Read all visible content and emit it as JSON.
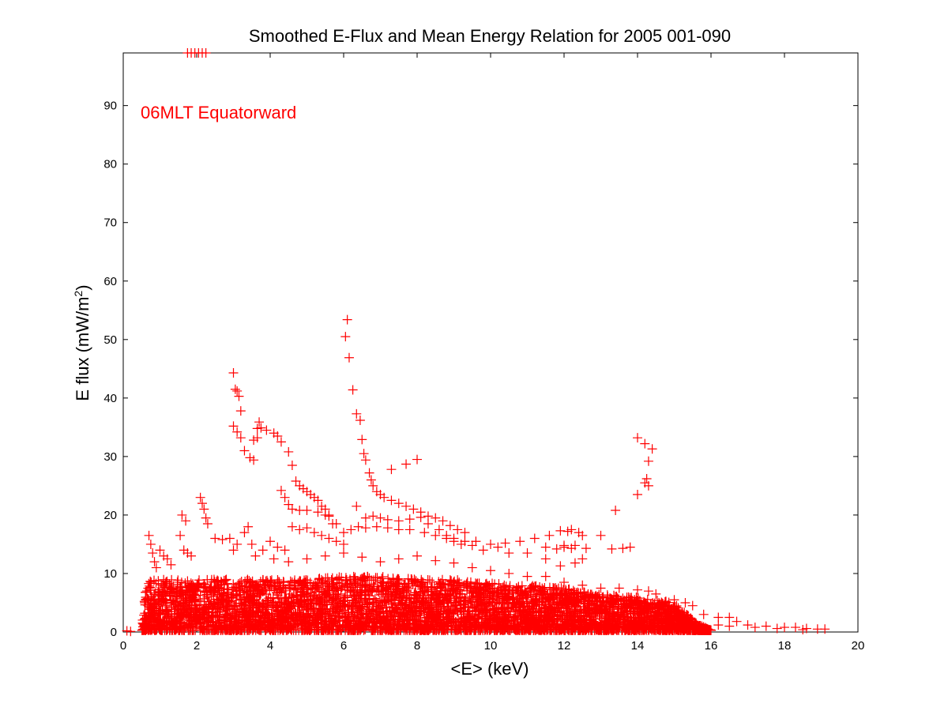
{
  "chart_data": {
    "type": "scatter",
    "title": "Smoothed E-Flux and Mean Energy Relation for 2005 001-090",
    "xlabel": "<E> (keV)",
    "ylabel_main": "E flux (mW/m",
    "ylabel_sup": "2",
    "ylabel_close": ")",
    "annotation": "06MLT Equatorward",
    "xlim": [
      0,
      20
    ],
    "ylim": [
      0,
      99
    ],
    "x_ticks": [
      0,
      2,
      4,
      6,
      8,
      10,
      12,
      14,
      16,
      18,
      20
    ],
    "y_ticks": [
      0,
      10,
      20,
      30,
      40,
      50,
      60,
      70,
      80,
      90
    ],
    "grid": false,
    "marker": "+",
    "marker_color": "#ff0000",
    "series": [
      {
        "points": [
          [
            1.75,
            99
          ],
          [
            1.85,
            99
          ],
          [
            1.95,
            99
          ],
          [
            2.05,
            99
          ],
          [
            2.15,
            99
          ],
          [
            2.25,
            99
          ],
          [
            0.7,
            16.5
          ],
          [
            0.75,
            15
          ],
          [
            0.8,
            13.5
          ],
          [
            0.85,
            12
          ],
          [
            0.9,
            11
          ],
          [
            1.0,
            14
          ],
          [
            1.1,
            13
          ],
          [
            1.2,
            12.5
          ],
          [
            1.3,
            11.5
          ],
          [
            1.6,
            20
          ],
          [
            1.7,
            19
          ],
          [
            1.55,
            16.5
          ],
          [
            1.65,
            14
          ],
          [
            1.75,
            13.5
          ],
          [
            1.85,
            13
          ],
          [
            2.1,
            23
          ],
          [
            2.15,
            22
          ],
          [
            2.2,
            21
          ],
          [
            2.25,
            19.5
          ],
          [
            2.3,
            18.5
          ],
          [
            2.5,
            16
          ],
          [
            2.7,
            15.8
          ],
          [
            2.9,
            16
          ],
          [
            3.0,
            14
          ],
          [
            3.1,
            15
          ],
          [
            3.3,
            17
          ],
          [
            3.4,
            18
          ],
          [
            3.5,
            15
          ],
          [
            3.6,
            13
          ],
          [
            3.0,
            44.3
          ],
          [
            3.05,
            41.5
          ],
          [
            3.1,
            41.2
          ],
          [
            3.15,
            40.3
          ],
          [
            3.2,
            37.8
          ],
          [
            3.0,
            35.2
          ],
          [
            3.1,
            34.2
          ],
          [
            3.2,
            33.2
          ],
          [
            3.3,
            31
          ],
          [
            3.45,
            29.8
          ],
          [
            3.55,
            29.4
          ],
          [
            3.7,
            35.9
          ],
          [
            3.65,
            34.8
          ],
          [
            3.75,
            34.9
          ],
          [
            3.9,
            34.5
          ],
          [
            4.1,
            34.0
          ],
          [
            4.2,
            33.5
          ],
          [
            4.3,
            32.5
          ],
          [
            4.5,
            30.8
          ],
          [
            4.6,
            28.5
          ],
          [
            4.7,
            25.8
          ],
          [
            4.8,
            25
          ],
          [
            4.9,
            24.5
          ],
          [
            5.0,
            24
          ],
          [
            5.1,
            23.5
          ],
          [
            5.2,
            23
          ],
          [
            5.3,
            22.5
          ],
          [
            5.4,
            21.5
          ],
          [
            5.5,
            21
          ],
          [
            5.6,
            20
          ],
          [
            3.55,
            32.8
          ],
          [
            3.65,
            33.2
          ],
          [
            4.3,
            24.2
          ],
          [
            4.4,
            23
          ],
          [
            4.5,
            21.8
          ],
          [
            4.6,
            21
          ],
          [
            4.8,
            20.8
          ],
          [
            5.0,
            20.8
          ],
          [
            5.3,
            20.5
          ],
          [
            5.6,
            19.8
          ],
          [
            5.7,
            18.5
          ],
          [
            6.1,
            53.4
          ],
          [
            6.05,
            50.5
          ],
          [
            6.15,
            46.9
          ],
          [
            6.25,
            41.4
          ],
          [
            6.35,
            37.3
          ],
          [
            6.45,
            36.2
          ],
          [
            6.5,
            32.9
          ],
          [
            6.55,
            30.5
          ],
          [
            6.6,
            29.4
          ],
          [
            6.7,
            27.2
          ],
          [
            6.75,
            26
          ],
          [
            6.8,
            25
          ],
          [
            6.9,
            24
          ],
          [
            7.0,
            23.5
          ],
          [
            7.1,
            23
          ],
          [
            7.3,
            22.5
          ],
          [
            7.5,
            22
          ],
          [
            7.7,
            21.5
          ],
          [
            7.9,
            21
          ],
          [
            8.1,
            20.5
          ],
          [
            8.3,
            19.8
          ],
          [
            8.5,
            19.5
          ],
          [
            8.7,
            19
          ],
          [
            8.9,
            18.2
          ],
          [
            9.1,
            17.5
          ],
          [
            9.3,
            17
          ],
          [
            7.3,
            27.8
          ],
          [
            7.7,
            28.7
          ],
          [
            8.0,
            29.5
          ],
          [
            6.35,
            21.5
          ],
          [
            6.6,
            19.5
          ],
          [
            6.8,
            19.8
          ],
          [
            7.0,
            19.5
          ],
          [
            7.2,
            19.2
          ],
          [
            7.5,
            19
          ],
          [
            7.8,
            19.3
          ],
          [
            8.1,
            19.6
          ],
          [
            8.3,
            18.5
          ],
          [
            8.6,
            17.5
          ],
          [
            8.8,
            16.5
          ],
          [
            9.0,
            16
          ],
          [
            9.3,
            15.5
          ],
          [
            9.6,
            15.5
          ],
          [
            10.0,
            15
          ],
          [
            10.4,
            15.2
          ],
          [
            10.8,
            15.5
          ],
          [
            11.2,
            16
          ],
          [
            11.6,
            16.5
          ],
          [
            11.9,
            17.3
          ],
          [
            12.1,
            17.2
          ],
          [
            12.2,
            17.5
          ],
          [
            12.4,
            17
          ],
          [
            11.5,
            14.5
          ],
          [
            11.8,
            14.2
          ],
          [
            12.0,
            14.5
          ],
          [
            12.3,
            14.8
          ],
          [
            12.6,
            14.3
          ],
          [
            12.5,
            16.5
          ],
          [
            12.5,
            12.5
          ],
          [
            12.3,
            11.8
          ],
          [
            11.9,
            11.3
          ],
          [
            13.0,
            16.5
          ],
          [
            13.3,
            14.2
          ],
          [
            13.6,
            14.3
          ],
          [
            13.8,
            14.5
          ],
          [
            13.4,
            20.8
          ],
          [
            14.0,
            33.2
          ],
          [
            14.2,
            32.2
          ],
          [
            14.4,
            31.3
          ],
          [
            14.3,
            29.2
          ],
          [
            14.25,
            26.2
          ],
          [
            14.2,
            25.5
          ],
          [
            14.3,
            25
          ],
          [
            14.0,
            23.5
          ],
          [
            12.0,
            14.8
          ],
          [
            12.2,
            14.3
          ],
          [
            11.5,
            12.5
          ],
          [
            11.0,
            13.5
          ],
          [
            10.5,
            13.5
          ],
          [
            10.2,
            14.5
          ],
          [
            9.8,
            14
          ],
          [
            9.5,
            14.8
          ],
          [
            9.2,
            15
          ],
          [
            5.5,
            20
          ],
          [
            5.8,
            18.5
          ],
          [
            6.0,
            17
          ],
          [
            6.2,
            17.5
          ],
          [
            6.4,
            18
          ],
          [
            6.6,
            17.8
          ],
          [
            6.9,
            18
          ],
          [
            7.2,
            17.8
          ],
          [
            7.5,
            17.5
          ],
          [
            7.8,
            17.5
          ],
          [
            8.2,
            17
          ],
          [
            8.5,
            16.5
          ],
          [
            8.8,
            16
          ],
          [
            9.0,
            15.5
          ],
          [
            4.6,
            18
          ],
          [
            4.8,
            17.5
          ],
          [
            5.0,
            17.8
          ],
          [
            5.2,
            17
          ],
          [
            5.4,
            16.5
          ],
          [
            5.6,
            16
          ],
          [
            5.8,
            15.5
          ],
          [
            6.0,
            15
          ],
          [
            4.2,
            14.5
          ],
          [
            4.4,
            14
          ],
          [
            4.0,
            15.5
          ],
          [
            3.8,
            14
          ],
          [
            4.1,
            12.5
          ],
          [
            4.5,
            12
          ],
          [
            5.0,
            12.5
          ],
          [
            5.5,
            13
          ],
          [
            6.0,
            13.5
          ],
          [
            6.5,
            12.8
          ],
          [
            7.0,
            12
          ],
          [
            7.5,
            12.5
          ],
          [
            8.0,
            13
          ],
          [
            8.5,
            12.2
          ],
          [
            9.0,
            11.8
          ],
          [
            9.5,
            11
          ],
          [
            10.0,
            10.5
          ],
          [
            10.5,
            10
          ],
          [
            11.0,
            9.5
          ],
          [
            11.5,
            9.5
          ],
          [
            12.0,
            8.5
          ],
          [
            12.5,
            8
          ],
          [
            13.0,
            7.5
          ],
          [
            13.5,
            7.5
          ],
          [
            14.0,
            7.2
          ],
          [
            14.3,
            7
          ],
          [
            14.5,
            6.5
          ],
          [
            15.0,
            5.5
          ],
          [
            15.3,
            5
          ],
          [
            15.5,
            4.5
          ],
          [
            15.8,
            3
          ],
          [
            16.2,
            2.5
          ],
          [
            16.5,
            2.5
          ],
          [
            16.7,
            1.8
          ],
          [
            17.0,
            1.2
          ],
          [
            17.5,
            1.0
          ],
          [
            18.0,
            0.8
          ],
          [
            18.3,
            0.8
          ],
          [
            18.6,
            0.6
          ],
          [
            18.9,
            0.5
          ],
          [
            19.1,
            0.5
          ],
          [
            16.2,
            1.2
          ],
          [
            16.5,
            1.0
          ],
          [
            17.2,
            0.8
          ],
          [
            17.8,
            0.6
          ],
          [
            18.5,
            0.4
          ],
          [
            0.1,
            0.2
          ],
          [
            0.2,
            0.1
          ]
        ]
      }
    ],
    "dense_cloud": {
      "envelope": [
        [
          0.5,
          0.5
        ],
        [
          0.6,
          8
        ],
        [
          0.8,
          9
        ],
        [
          1.0,
          9
        ],
        [
          2.0,
          9
        ],
        [
          3.0,
          9
        ],
        [
          4.0,
          9
        ],
        [
          5.0,
          9
        ],
        [
          6.0,
          9.5
        ],
        [
          7.0,
          9.5
        ],
        [
          8.0,
          9
        ],
        [
          9.0,
          9
        ],
        [
          10.0,
          8.5
        ],
        [
          11.0,
          8
        ],
        [
          12.0,
          7.5
        ],
        [
          13.0,
          6.5
        ],
        [
          14.0,
          6
        ],
        [
          15.0,
          5
        ],
        [
          15.6,
          1.5
        ],
        [
          16.0,
          0.3
        ]
      ],
      "count": 5200,
      "seed": 20050101
    }
  }
}
